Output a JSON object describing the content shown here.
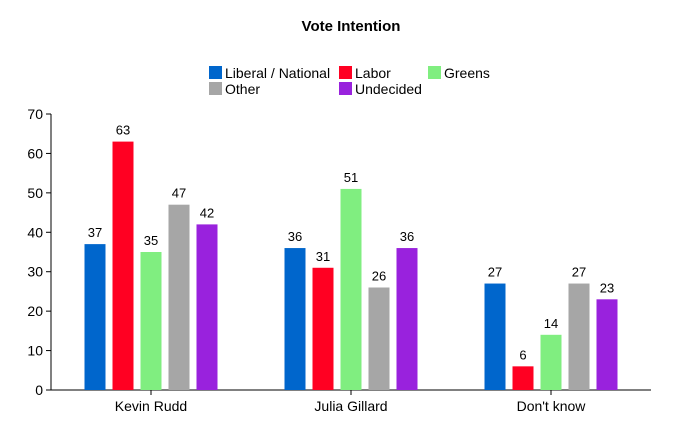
{
  "chart_data": {
    "type": "bar",
    "title": "Vote Intention",
    "xlabel": "",
    "ylabel": "",
    "ylim": [
      0,
      70
    ],
    "yticks": [
      0,
      10,
      20,
      30,
      40,
      50,
      60,
      70
    ],
    "categories": [
      "Kevin Rudd",
      "Julia Gillard",
      "Don't know"
    ],
    "series": [
      {
        "name": "Liberal / National",
        "color": "#0066cc",
        "values": [
          37,
          36,
          27
        ]
      },
      {
        "name": "Labor",
        "color": "#ff0022",
        "values": [
          63,
          31,
          6
        ]
      },
      {
        "name": "Greens",
        "color": "#80ee80",
        "values": [
          35,
          51,
          14
        ]
      },
      {
        "name": "Other",
        "color": "#a6a6a6",
        "values": [
          47,
          26,
          27
        ]
      },
      {
        "name": "Undecided",
        "color": "#9922dd",
        "values": [
          42,
          36,
          23
        ]
      }
    ],
    "legend_position": "top",
    "grid": false
  }
}
